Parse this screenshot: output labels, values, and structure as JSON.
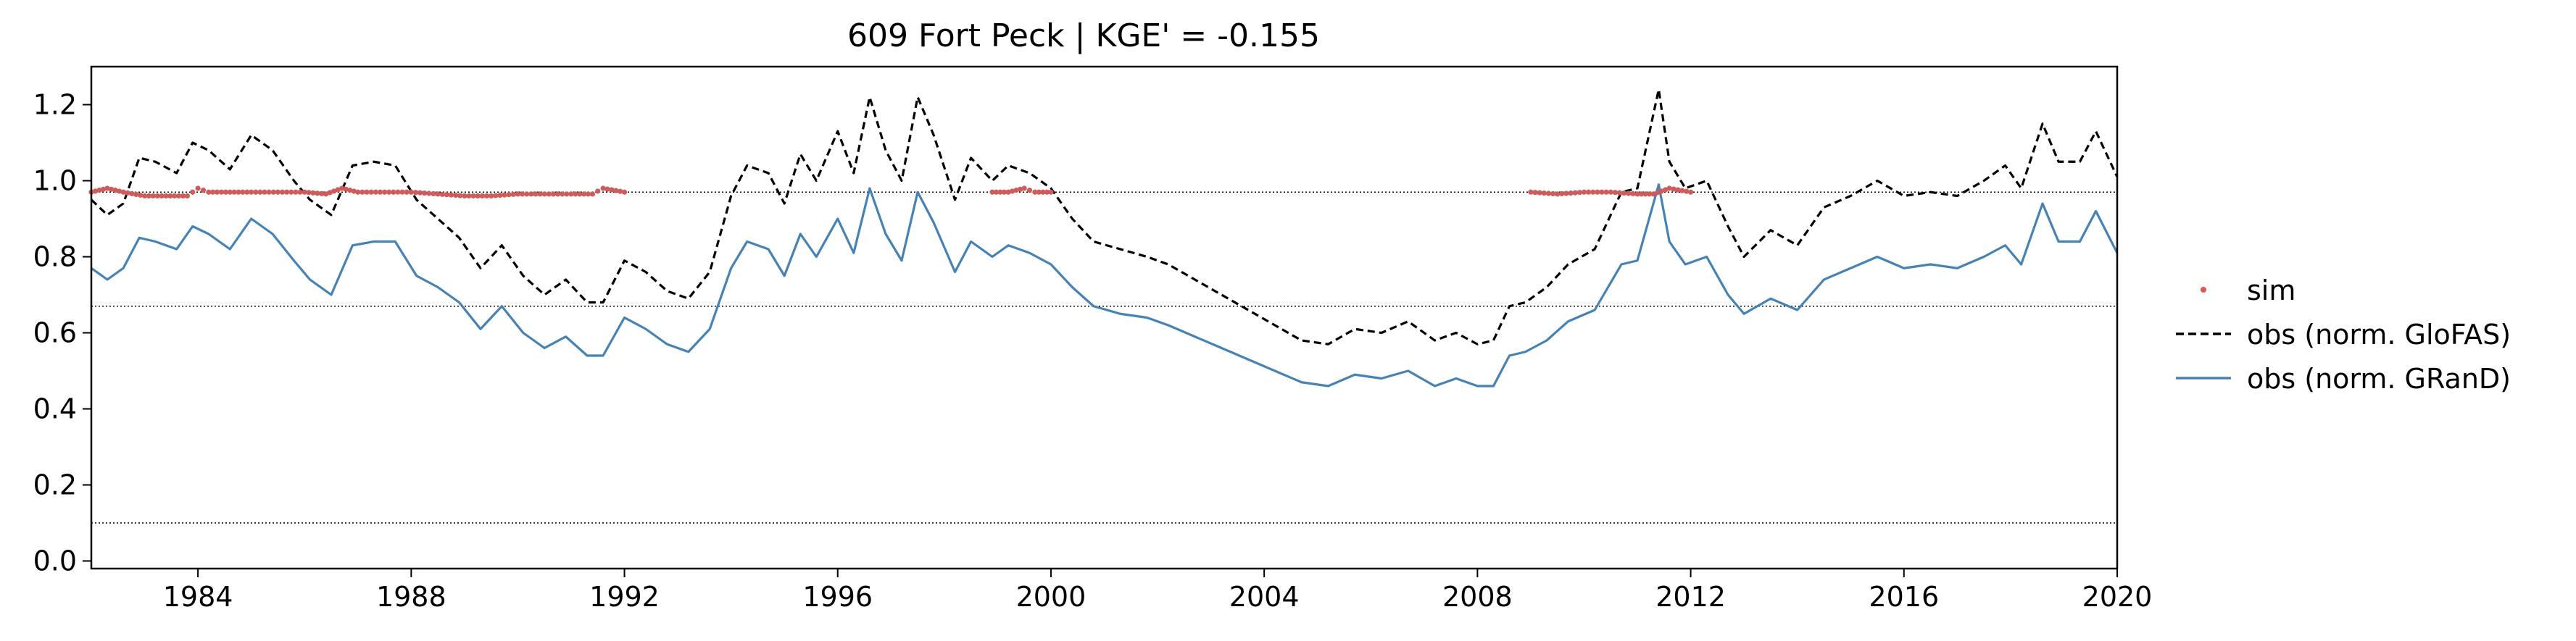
{
  "chart_data": {
    "type": "line",
    "title": "609  Fort Peck | KGE' = -0.155",
    "xlabel": "",
    "ylabel": "",
    "xlim": [
      1982.0,
      2020.0
    ],
    "ylim": [
      -0.02,
      1.3
    ],
    "xticks": [
      1984,
      1988,
      1992,
      1996,
      2000,
      2004,
      2008,
      2012,
      2016,
      2020
    ],
    "xtick_labels": [
      "1984",
      "1988",
      "1992",
      "1996",
      "2000",
      "2004",
      "2008",
      "2012",
      "2016",
      "2020"
    ],
    "yticks": [
      0.0,
      0.2,
      0.4,
      0.6,
      0.8,
      1.0,
      1.2
    ],
    "ytick_labels": [
      "0.0",
      "0.2",
      "0.4",
      "0.6",
      "0.8",
      "1.0",
      "1.2"
    ],
    "grid": false,
    "legend_position": "right, outside plot",
    "reference_lines": [
      0.97,
      0.67,
      0.1
    ],
    "series": [
      {
        "name": "sim",
        "style": "points",
        "color": "#cd5c5c",
        "segments": [
          {
            "x": [
              1982.0,
              1982.3,
              1982.6,
              1983.0,
              1983.4,
              1983.8,
              1984.0,
              1984.2,
              1984.6,
              1985.0,
              1985.5,
              1986.0,
              1986.4,
              1986.7,
              1987.0,
              1987.5,
              1988.0,
              1988.5,
              1989.0,
              1989.5,
              1990.0,
              1990.5,
              1991.0,
              1991.4,
              1991.6,
              1992.0
            ],
            "y": [
              0.97,
              0.98,
              0.97,
              0.96,
              0.96,
              0.96,
              0.98,
              0.97,
              0.97,
              0.97,
              0.97,
              0.97,
              0.965,
              0.98,
              0.97,
              0.97,
              0.97,
              0.965,
              0.96,
              0.96,
              0.965,
              0.965,
              0.965,
              0.965,
              0.98,
              0.97
            ]
          },
          {
            "x": [
              1998.9,
              1999.2,
              1999.5,
              1999.7,
              2000.0
            ],
            "y": [
              0.97,
              0.97,
              0.98,
              0.97,
              0.97
            ]
          },
          {
            "x": [
              2009.0,
              2009.5,
              2010.0,
              2010.5,
              2011.0,
              2011.3,
              2011.6,
              2012.0
            ],
            "y": [
              0.97,
              0.965,
              0.97,
              0.97,
              0.965,
              0.965,
              0.98,
              0.97
            ]
          }
        ]
      },
      {
        "name": "obs (norm. GloFAS)",
        "style": "dashed",
        "color": "#000000",
        "x": [
          1982.0,
          1982.3,
          1982.6,
          1982.9,
          1983.2,
          1983.6,
          1983.9,
          1984.2,
          1984.6,
          1985.0,
          1985.4,
          1985.8,
          1986.1,
          1986.5,
          1986.9,
          1987.3,
          1987.7,
          1988.1,
          1988.5,
          1988.9,
          1989.3,
          1989.7,
          1990.1,
          1990.5,
          1990.9,
          1991.3,
          1991.6,
          1992.0,
          1992.4,
          1992.8,
          1993.2,
          1993.6,
          1994.0,
          1994.3,
          1994.7,
          1995.0,
          1995.3,
          1995.6,
          1996.0,
          1996.3,
          1996.6,
          1996.9,
          1997.2,
          1997.5,
          1997.8,
          1998.2,
          1998.5,
          1998.9,
          1999.2,
          1999.6,
          2000.0,
          2000.4,
          2000.8,
          2001.3,
          2001.8,
          2002.2,
          2002.7,
          2003.2,
          2003.7,
          2004.2,
          2004.7,
          2005.2,
          2005.7,
          2006.2,
          2006.7,
          2007.2,
          2007.6,
          2008.0,
          2008.3,
          2008.6,
          2008.9,
          2009.3,
          2009.7,
          2010.2,
          2010.7,
          2011.0,
          2011.4,
          2011.6,
          2011.9,
          2012.3,
          2012.7,
          2013.0,
          2013.5,
          2014.0,
          2014.5,
          2015.0,
          2015.5,
          2016.0,
          2016.5,
          2017.0,
          2017.5,
          2017.9,
          2018.2,
          2018.6,
          2018.9,
          2019.3,
          2019.6,
          2020.0
        ],
        "y": [
          0.95,
          0.91,
          0.94,
          1.06,
          1.05,
          1.02,
          1.1,
          1.08,
          1.03,
          1.12,
          1.08,
          1.0,
          0.95,
          0.91,
          1.04,
          1.05,
          1.04,
          0.95,
          0.9,
          0.85,
          0.77,
          0.83,
          0.75,
          0.7,
          0.74,
          0.68,
          0.68,
          0.79,
          0.76,
          0.71,
          0.69,
          0.76,
          0.96,
          1.04,
          1.02,
          0.94,
          1.07,
          1.0,
          1.13,
          1.02,
          1.22,
          1.08,
          1.0,
          1.22,
          1.12,
          0.95,
          1.06,
          1.0,
          1.04,
          1.02,
          0.98,
          0.9,
          0.84,
          0.82,
          0.8,
          0.78,
          0.74,
          0.7,
          0.66,
          0.62,
          0.58,
          0.57,
          0.61,
          0.6,
          0.63,
          0.58,
          0.6,
          0.57,
          0.58,
          0.67,
          0.68,
          0.72,
          0.78,
          0.82,
          0.97,
          0.98,
          1.24,
          1.05,
          0.98,
          1.0,
          0.88,
          0.8,
          0.87,
          0.83,
          0.93,
          0.96,
          1.0,
          0.96,
          0.97,
          0.96,
          1.0,
          1.04,
          0.98,
          1.15,
          1.05,
          1.05,
          1.13,
          1.01
        ]
      },
      {
        "name": "obs (norm. GRanD)",
        "style": "solid",
        "color": "#4682b4",
        "x": [
          1982.0,
          1982.3,
          1982.6,
          1982.9,
          1983.2,
          1983.6,
          1983.9,
          1984.2,
          1984.6,
          1985.0,
          1985.4,
          1985.8,
          1986.1,
          1986.5,
          1986.9,
          1987.3,
          1987.7,
          1988.1,
          1988.5,
          1988.9,
          1989.3,
          1989.7,
          1990.1,
          1990.5,
          1990.9,
          1991.3,
          1991.6,
          1992.0,
          1992.4,
          1992.8,
          1993.2,
          1993.6,
          1994.0,
          1994.3,
          1994.7,
          1995.0,
          1995.3,
          1995.6,
          1996.0,
          1996.3,
          1996.6,
          1996.9,
          1997.2,
          1997.5,
          1997.8,
          1998.2,
          1998.5,
          1998.9,
          1999.2,
          1999.6,
          2000.0,
          2000.4,
          2000.8,
          2001.3,
          2001.8,
          2002.2,
          2002.7,
          2003.2,
          2003.7,
          2004.2,
          2004.7,
          2005.2,
          2005.7,
          2006.2,
          2006.7,
          2007.2,
          2007.6,
          2008.0,
          2008.3,
          2008.6,
          2008.9,
          2009.3,
          2009.7,
          2010.2,
          2010.7,
          2011.0,
          2011.4,
          2011.6,
          2011.9,
          2012.3,
          2012.7,
          2013.0,
          2013.5,
          2014.0,
          2014.5,
          2015.0,
          2015.5,
          2016.0,
          2016.5,
          2017.0,
          2017.5,
          2017.9,
          2018.2,
          2018.6,
          2018.9,
          2019.3,
          2019.6,
          2020.0
        ],
        "y": [
          0.77,
          0.74,
          0.77,
          0.85,
          0.84,
          0.82,
          0.88,
          0.86,
          0.82,
          0.9,
          0.86,
          0.79,
          0.74,
          0.7,
          0.83,
          0.84,
          0.84,
          0.75,
          0.72,
          0.68,
          0.61,
          0.67,
          0.6,
          0.56,
          0.59,
          0.54,
          0.54,
          0.64,
          0.61,
          0.57,
          0.55,
          0.61,
          0.77,
          0.84,
          0.82,
          0.75,
          0.86,
          0.8,
          0.9,
          0.81,
          0.98,
          0.86,
          0.79,
          0.97,
          0.89,
          0.76,
          0.84,
          0.8,
          0.83,
          0.81,
          0.78,
          0.72,
          0.67,
          0.65,
          0.64,
          0.62,
          0.59,
          0.56,
          0.53,
          0.5,
          0.47,
          0.46,
          0.49,
          0.48,
          0.5,
          0.46,
          0.48,
          0.46,
          0.46,
          0.54,
          0.55,
          0.58,
          0.63,
          0.66,
          0.78,
          0.79,
          0.99,
          0.84,
          0.78,
          0.8,
          0.7,
          0.65,
          0.69,
          0.66,
          0.74,
          0.77,
          0.8,
          0.77,
          0.78,
          0.77,
          0.8,
          0.83,
          0.78,
          0.94,
          0.84,
          0.84,
          0.92,
          0.81
        ]
      }
    ]
  }
}
